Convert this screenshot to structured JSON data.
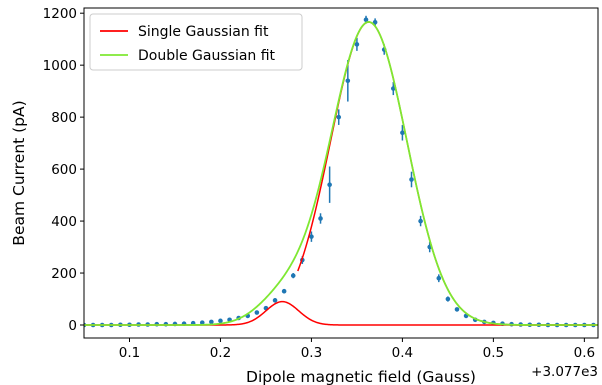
{
  "chart_data": {
    "type": "scatter",
    "xlabel": "Dipole magnetic field (Gauss)",
    "ylabel": "Beam Current (pA)",
    "x_offset_label": "+3.077e3",
    "xlim": [
      0.05,
      0.615
    ],
    "ylim": [
      -50,
      1220
    ],
    "x_ticks": [
      0.1,
      0.2,
      0.3,
      0.4,
      0.5,
      0.6
    ],
    "x_tick_labels": [
      "0.1",
      "0.2",
      "0.3",
      "0.4",
      "0.5",
      "0.6"
    ],
    "y_ticks": [
      0,
      200,
      400,
      600,
      800,
      1000,
      1200
    ],
    "y_tick_labels": [
      "0",
      "200",
      "400",
      "600",
      "800",
      "1000",
      "1200"
    ],
    "legend": {
      "placement": "top-left"
    },
    "measurements": {
      "name": "",
      "color": "#1f77b4",
      "x": [
        0.05,
        0.06,
        0.07,
        0.08,
        0.09,
        0.1,
        0.11,
        0.12,
        0.13,
        0.14,
        0.15,
        0.16,
        0.17,
        0.18,
        0.19,
        0.2,
        0.21,
        0.22,
        0.23,
        0.24,
        0.25,
        0.26,
        0.27,
        0.28,
        0.29,
        0.3,
        0.31,
        0.32,
        0.33,
        0.34,
        0.35,
        0.36,
        0.37,
        0.38,
        0.39,
        0.4,
        0.41,
        0.42,
        0.43,
        0.44,
        0.45,
        0.46,
        0.47,
        0.48,
        0.49,
        0.5,
        0.51,
        0.52,
        0.53,
        0.54,
        0.55,
        0.56,
        0.57,
        0.58,
        0.59,
        0.6,
        0.61
      ],
      "y": [
        0,
        0,
        0,
        0,
        1,
        1,
        2,
        2,
        3,
        3,
        4,
        5,
        7,
        9,
        12,
        16,
        20,
        27,
        35,
        48,
        65,
        95,
        130,
        190,
        250,
        340,
        410,
        540,
        800,
        940,
        1080,
        1175,
        1165,
        1060,
        910,
        740,
        560,
        400,
        300,
        180,
        100,
        60,
        35,
        20,
        12,
        8,
        5,
        3,
        2,
        1,
        1,
        0,
        0,
        0,
        0,
        0,
        0
      ],
      "yerr": [
        0,
        0,
        0,
        0,
        0,
        0,
        0,
        0,
        0,
        0,
        0,
        0,
        0,
        0,
        0,
        0,
        0,
        0,
        0,
        0,
        0,
        6,
        8,
        10,
        15,
        20,
        20,
        70,
        30,
        80,
        25,
        15,
        15,
        20,
        25,
        30,
        30,
        20,
        20,
        15,
        10,
        5,
        0,
        0,
        0,
        0,
        0,
        0,
        0,
        0,
        0,
        0,
        0,
        0,
        0,
        0,
        0
      ]
    },
    "series": [
      {
        "name": "Single Gaussian fit",
        "color": "#ff0000",
        "model": "gaussian",
        "components": [
          {
            "amplitude": 90,
            "mean": 0.268,
            "sigma": 0.018
          }
        ],
        "right_branch": {
          "amplitude": 1166,
          "mean": 0.363,
          "sigma": 0.042,
          "from_x": 0.285
        }
      },
      {
        "name": "Double Gaussian fit",
        "color": "#7fe832",
        "model": "gaussian_sum",
        "components": [
          {
            "amplitude": 1166,
            "mean": 0.363,
            "sigma": 0.042
          },
          {
            "amplitude": 90,
            "mean": 0.268,
            "sigma": 0.028
          }
        ]
      }
    ]
  }
}
